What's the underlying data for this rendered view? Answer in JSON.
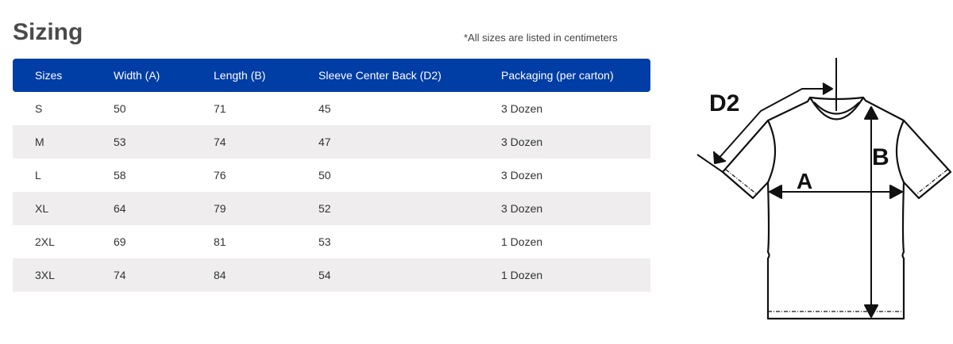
{
  "title": "Sizing",
  "note": "*All sizes are listed in centimeters",
  "table": {
    "headers": [
      "Sizes",
      "Width (A)",
      "Length (B)",
      "Sleeve Center Back (D2)",
      "Packaging (per carton)"
    ],
    "rows": [
      [
        "S",
        "50",
        "71",
        "45",
        "3 Dozen"
      ],
      [
        "M",
        "53",
        "74",
        "47",
        "3 Dozen"
      ],
      [
        "L",
        "58",
        "76",
        "50",
        "3 Dozen"
      ],
      [
        "XL",
        "64",
        "79",
        "52",
        "3 Dozen"
      ],
      [
        "2XL",
        "69",
        "81",
        "53",
        "1 Dozen"
      ],
      [
        "3XL",
        "74",
        "84",
        "54",
        "1 Dozen"
      ]
    ]
  },
  "diagram": {
    "label_a": "A",
    "label_b": "B",
    "label_d2": "D2"
  },
  "colors": {
    "header": "#003da5",
    "alt_row": "#efedee"
  }
}
